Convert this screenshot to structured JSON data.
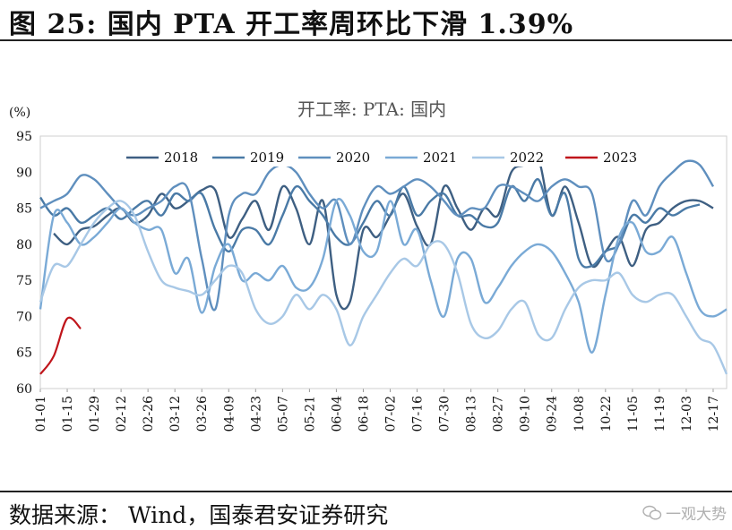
{
  "figure": {
    "title": "图 25:  国内 PTA 开工率周环比下滑 1.39%",
    "source": "数据来源：  Wind，国泰君安证券研究",
    "watermark": "一观大势",
    "watermark_icon": "wechat-icon"
  },
  "chart_data": {
    "type": "line",
    "title": "开工率: PTA: 国内",
    "ylabel": "(%)",
    "ylim": [
      60,
      95
    ],
    "yticks": [
      60,
      65,
      70,
      75,
      80,
      85,
      90,
      95
    ],
    "xlim": [
      0,
      51
    ],
    "x_tick_labels": [
      "01-01",
      "01-15",
      "01-29",
      "02-12",
      "02-26",
      "03-12",
      "03-26",
      "04-09",
      "04-23",
      "05-07",
      "05-21",
      "06-04",
      "06-18",
      "07-02",
      "07-16",
      "07-30",
      "08-13",
      "08-27",
      "09-10",
      "09-24",
      "10-08",
      "10-22",
      "11-05",
      "11-19",
      "12-03",
      "12-17"
    ],
    "x_tick_weeks": [
      0,
      2,
      4,
      6,
      8,
      10,
      12,
      14,
      16,
      18,
      20,
      22,
      24,
      26,
      28,
      30,
      32,
      34,
      36,
      38,
      40,
      42,
      44,
      46,
      48,
      50
    ],
    "legend_position": "top",
    "series": [
      {
        "name": "2018",
        "color": "#3e5f82",
        "start_week": 1,
        "values": [
          81.5,
          80,
          82,
          82.5,
          84,
          85,
          83,
          84,
          87,
          85,
          86,
          87.5,
          87.5,
          81,
          83.5,
          86,
          82,
          88,
          85,
          80,
          86,
          73,
          72,
          82,
          81,
          84,
          87,
          82.5,
          80,
          88,
          85,
          82,
          85,
          84,
          90,
          91,
          92,
          84,
          88,
          83,
          77,
          79,
          81,
          77,
          82,
          83,
          85,
          86,
          86,
          85
        ]
      },
      {
        "name": "2019",
        "color": "#4a7aa6",
        "start_week": 0,
        "values": [
          86.5,
          84,
          85,
          83,
          84,
          85,
          83.5,
          85,
          86,
          84,
          87,
          86,
          87,
          82,
          79,
          82,
          82,
          80,
          84,
          88,
          86,
          84,
          81,
          80,
          83,
          86,
          84,
          88,
          84,
          86,
          87,
          84,
          84,
          82.5,
          83,
          88,
          86,
          89,
          84,
          87,
          78,
          77,
          79,
          80,
          84,
          83,
          85,
          84,
          85,
          85.5
        ]
      },
      {
        "name": "2020",
        "color": "#5f8fbe",
        "start_week": 0,
        "values": [
          85,
          86,
          87,
          89.5,
          89,
          87,
          85,
          84,
          85,
          86,
          88,
          87.5,
          78,
          71,
          84,
          87,
          87,
          90,
          91,
          90,
          87,
          85,
          86,
          80,
          85,
          88,
          87,
          88,
          89,
          88,
          86,
          84,
          85,
          85,
          88,
          88,
          87,
          86,
          88,
          89,
          88,
          87,
          78,
          80,
          86,
          84,
          88,
          90,
          91.5,
          91,
          88
        ]
      },
      {
        "name": "2021",
        "color": "#7aaad6",
        "start_week": 0,
        "values": [
          71,
          84,
          83,
          80,
          81,
          83,
          85,
          83,
          82,
          82,
          76,
          78,
          70.5,
          77,
          80,
          75,
          76,
          75,
          77,
          74,
          74,
          78,
          86,
          84,
          79,
          79,
          86,
          80,
          82,
          75,
          70,
          78,
          78,
          72,
          74,
          77,
          79,
          80,
          79,
          76,
          72,
          65,
          73,
          81,
          83,
          79,
          79,
          81,
          76,
          71,
          70,
          71
        ]
      },
      {
        "name": "2022",
        "color": "#a8c8e6",
        "start_week": 0,
        "values": [
          72,
          77,
          77,
          80,
          83,
          85,
          86,
          84,
          79,
          75,
          74,
          73.5,
          73,
          75,
          77,
          76,
          71,
          69,
          70,
          73,
          71,
          73,
          71,
          66,
          70,
          73,
          76,
          78,
          77,
          80,
          80,
          76,
          69,
          67,
          68,
          71,
          72,
          67.5,
          67,
          71,
          74,
          75,
          75,
          76,
          73,
          72,
          73,
          73,
          70,
          67,
          66,
          62
        ]
      },
      {
        "name": "2023",
        "color": "#c0151b",
        "start_week": 0,
        "values": [
          62,
          64.5,
          69.7,
          68.3
        ]
      }
    ]
  }
}
